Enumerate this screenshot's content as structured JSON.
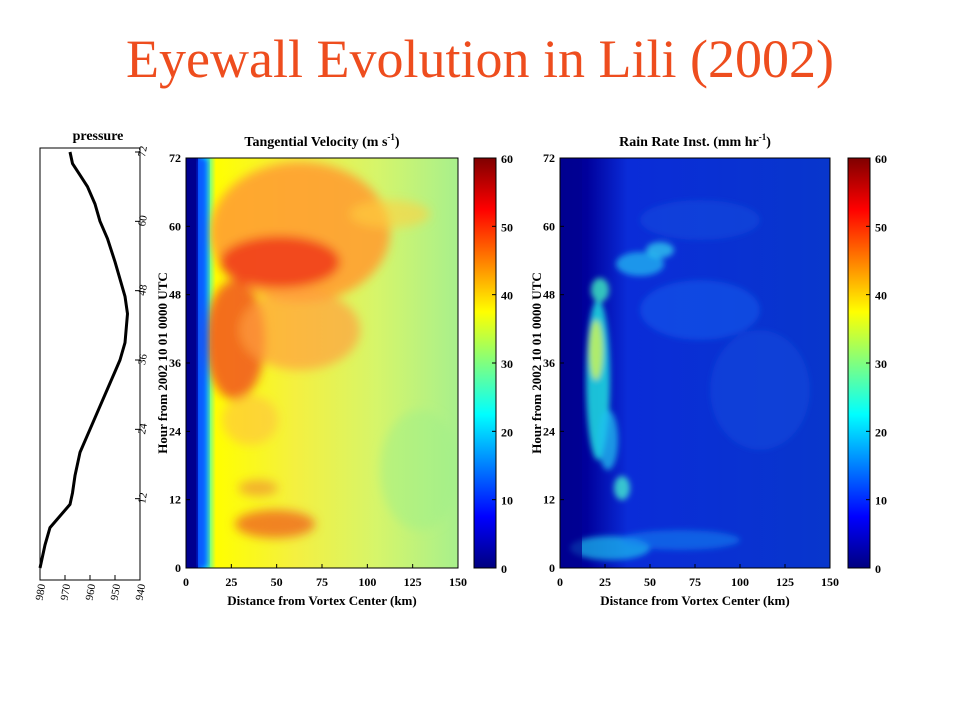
{
  "slide": {
    "title": "Eyewall Evolution in Lili (2002)"
  },
  "colors": {
    "title": "#ee4d1e"
  },
  "chart_data": [
    {
      "type": "line",
      "id": "pressure",
      "title": "pressure",
      "x_ticks": [
        "980",
        "970",
        "960",
        "950",
        "940"
      ],
      "xlim": [
        980,
        940
      ],
      "y_ticks": [
        "72",
        "60",
        "48",
        "36",
        "24",
        "12"
      ],
      "ylim": [
        0,
        72
      ],
      "series": [
        {
          "x": [
            980,
            978,
            976,
            972,
            968,
            967,
            966,
            964,
            960,
            956,
            952,
            950,
            948,
            946,
            945,
            946,
            948,
            950,
            953,
            956,
            958,
            961,
            964,
            967,
            968
          ],
          "y": [
            0,
            4,
            7,
            9,
            11,
            13,
            16,
            20,
            24,
            28,
            32,
            34,
            36,
            39,
            44,
            47,
            50,
            53,
            57,
            60,
            63,
            66,
            68,
            70,
            72
          ]
        }
      ]
    },
    {
      "type": "heatmap",
      "id": "velocity",
      "title": "Tangential Velocity (m s",
      "title_sup": "-1",
      "title_end": ")",
      "xlabel": "Distance from Vortex Center (km)",
      "ylabel": "Hour from 2002 10 01 0000 UTC",
      "x_ticks": [
        "0",
        "25",
        "50",
        "75",
        "100",
        "125",
        "150"
      ],
      "xlim": [
        0,
        150
      ],
      "y_ticks": [
        "0",
        "12",
        "24",
        "36",
        "48",
        "60",
        "72"
      ],
      "ylim": [
        0,
        72
      ],
      "colorbar_ticks": [
        "0",
        "10",
        "20",
        "30",
        "40",
        "50",
        "60"
      ],
      "clim": [
        0,
        60
      ]
    },
    {
      "type": "heatmap",
      "id": "rain",
      "title": "Rain Rate Inst. (mm hr",
      "title_sup": "-1",
      "title_end": ")",
      "xlabel": "Distance from Vortex Center (km)",
      "ylabel": "Hour from 2002 10 01 0000 UTC",
      "x_ticks": [
        "0",
        "25",
        "50",
        "75",
        "100",
        "125",
        "150"
      ],
      "xlim": [
        0,
        150
      ],
      "y_ticks": [
        "0",
        "12",
        "24",
        "36",
        "48",
        "60",
        "72"
      ],
      "ylim": [
        0,
        72
      ],
      "colorbar_ticks": [
        "0",
        "10",
        "20",
        "30",
        "40",
        "50",
        "60"
      ],
      "clim": [
        0,
        60
      ]
    }
  ]
}
